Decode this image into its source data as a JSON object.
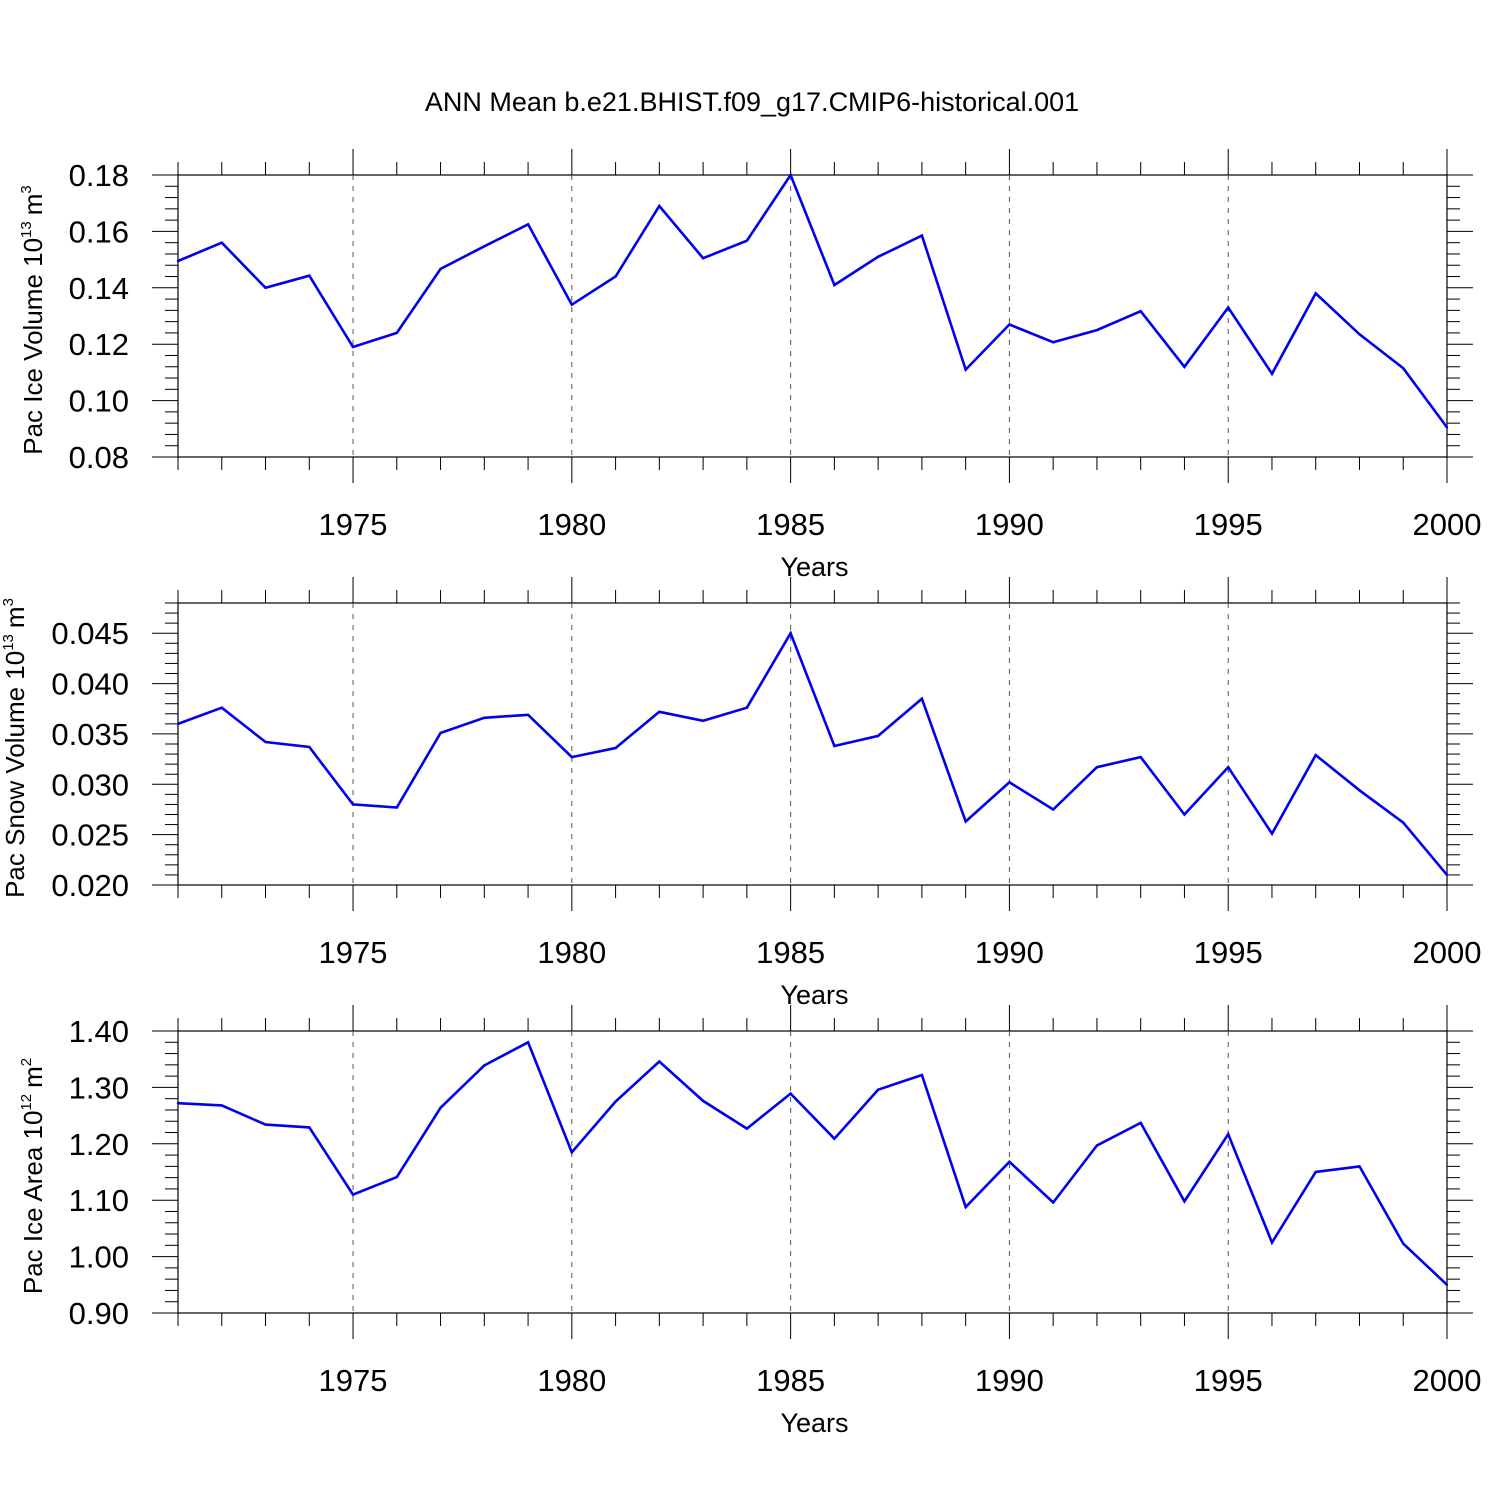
{
  "title": "ANN Mean b.e21.BHIST.f09_g17.CMIP6-historical.001",
  "line_color": "#0000ee",
  "chart_data": [
    {
      "type": "line",
      "ylabel": {
        "text": "Pac Ice Volume 10",
        "exponent": "13",
        "unit": "m",
        "unit_exponent": "3"
      },
      "xlabel": "Years",
      "xlim": [
        1971,
        2000
      ],
      "ylim": [
        0.08,
        0.18
      ],
      "yticks": [
        0.08,
        0.1,
        0.12,
        0.14,
        0.16,
        0.18
      ],
      "ytick_labels": [
        "0.08",
        "0.10",
        "0.12",
        "0.14",
        "0.16",
        "0.18"
      ],
      "xticks": [
        1975,
        1980,
        1985,
        1990,
        1995,
        2000
      ],
      "xtick_labels": [
        "1975",
        "1980",
        "1985",
        "1990",
        "1995",
        "2000"
      ],
      "x": [
        1971,
        1972,
        1973,
        1974,
        1975,
        1976,
        1977,
        1978,
        1979,
        1980,
        1981,
        1982,
        1983,
        1984,
        1985,
        1986,
        1987,
        1988,
        1989,
        1990,
        1991,
        1992,
        1993,
        1994,
        1995,
        1996,
        1997,
        1998,
        1999,
        2000
      ],
      "values": [
        0.1495,
        0.156,
        0.14,
        0.1443,
        0.119,
        0.124,
        0.1467,
        0.1547,
        0.1625,
        0.134,
        0.144,
        0.169,
        0.1505,
        0.1567,
        0.18,
        0.141,
        0.151,
        0.1585,
        0.111,
        0.127,
        0.1207,
        0.125,
        0.1317,
        0.112,
        0.133,
        0.1095,
        0.138,
        0.1235,
        0.1115,
        0.0905
      ]
    },
    {
      "type": "line",
      "ylabel": {
        "text": "Pac Snow Volume 10",
        "exponent": "13",
        "unit": "m",
        "unit_exponent": "3"
      },
      "xlabel": "Years",
      "xlim": [
        1971,
        2000
      ],
      "ylim": [
        0.02,
        0.048
      ],
      "yticks": [
        0.02,
        0.025,
        0.03,
        0.035,
        0.04,
        0.045
      ],
      "ytick_labels": [
        "0.020",
        "0.025",
        "0.030",
        "0.035",
        "0.040",
        "0.045"
      ],
      "xticks": [
        1975,
        1980,
        1985,
        1990,
        1995,
        2000
      ],
      "xtick_labels": [
        "1975",
        "1980",
        "1985",
        "1990",
        "1995",
        "2000"
      ],
      "x": [
        1971,
        1972,
        1973,
        1974,
        1975,
        1976,
        1977,
        1978,
        1979,
        1980,
        1981,
        1982,
        1983,
        1984,
        1985,
        1986,
        1987,
        1988,
        1989,
        1990,
        1991,
        1992,
        1993,
        1994,
        1995,
        1996,
        1997,
        1998,
        1999,
        2000
      ],
      "values": [
        0.036,
        0.0376,
        0.0342,
        0.0337,
        0.028,
        0.0277,
        0.0351,
        0.0366,
        0.0369,
        0.0327,
        0.0336,
        0.0372,
        0.0363,
        0.0376,
        0.045,
        0.0338,
        0.0348,
        0.0385,
        0.0263,
        0.0302,
        0.0275,
        0.0317,
        0.0327,
        0.027,
        0.0317,
        0.0251,
        0.0329,
        0.0294,
        0.0262,
        0.021
      ]
    },
    {
      "type": "line",
      "ylabel": {
        "text": "Pac Ice Area 10",
        "exponent": "12",
        "unit": "m",
        "unit_exponent": "2"
      },
      "xlabel": "Years",
      "xlim": [
        1971,
        2000
      ],
      "ylim": [
        0.9,
        1.4
      ],
      "yticks": [
        0.9,
        1.0,
        1.1,
        1.2,
        1.3,
        1.4
      ],
      "ytick_labels": [
        "0.90",
        "1.00",
        "1.10",
        "1.20",
        "1.30",
        "1.40"
      ],
      "xticks": [
        1975,
        1980,
        1985,
        1990,
        1995,
        2000
      ],
      "xtick_labels": [
        "1975",
        "1980",
        "1985",
        "1990",
        "1995",
        "2000"
      ],
      "x": [
        1971,
        1972,
        1973,
        1974,
        1975,
        1976,
        1977,
        1978,
        1979,
        1980,
        1981,
        1982,
        1983,
        1984,
        1985,
        1986,
        1987,
        1988,
        1989,
        1990,
        1991,
        1992,
        1993,
        1994,
        1995,
        1996,
        1997,
        1998,
        1999,
        2000
      ],
      "values": [
        1.272,
        1.268,
        1.234,
        1.229,
        1.11,
        1.141,
        1.264,
        1.339,
        1.38,
        1.185,
        1.275,
        1.346,
        1.276,
        1.227,
        1.289,
        1.209,
        1.296,
        1.322,
        1.088,
        1.168,
        1.096,
        1.197,
        1.237,
        1.098,
        1.217,
        1.025,
        1.15,
        1.16,
        1.023,
        0.95
      ]
    }
  ]
}
